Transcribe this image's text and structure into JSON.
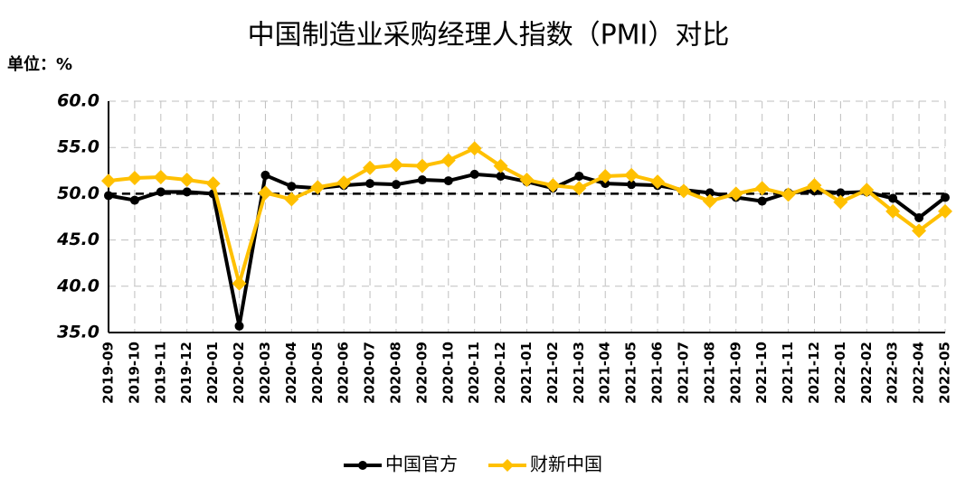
{
  "chart_data": {
    "type": "line",
    "title": "中国制造业采购经理人指数（PMI）对比",
    "unit_label": "单位：%",
    "categories": [
      "2019-09",
      "2019-10",
      "2019-11",
      "2019-12",
      "2020-01",
      "2020-02",
      "2020-03",
      "2020-04",
      "2020-05",
      "2020-06",
      "2020-07",
      "2020-08",
      "2020-09",
      "2020-10",
      "2020-11",
      "2020-12",
      "2021-01",
      "2021-02",
      "2021-03",
      "2021-04",
      "2021-05",
      "2021-06",
      "2021-07",
      "2021-08",
      "2021-09",
      "2021-10",
      "2021-11",
      "2021-12",
      "2022-01",
      "2022-02",
      "2022-03",
      "2022-04",
      "2022-05"
    ],
    "series": [
      {
        "name": "中国官方",
        "color": "#000000",
        "marker": "circle",
        "values": [
          49.8,
          49.3,
          50.2,
          50.2,
          50.0,
          35.7,
          52.0,
          50.8,
          50.6,
          50.9,
          51.1,
          51.0,
          51.5,
          51.4,
          52.1,
          51.9,
          51.3,
          50.6,
          51.9,
          51.1,
          51.0,
          50.9,
          50.4,
          50.1,
          49.6,
          49.2,
          50.1,
          50.3,
          50.1,
          50.2,
          49.5,
          47.4,
          49.6
        ]
      },
      {
        "name": "财新中国",
        "color": "#FFC000",
        "marker": "diamond",
        "values": [
          51.4,
          51.7,
          51.8,
          51.5,
          51.1,
          40.3,
          50.1,
          49.4,
          50.7,
          51.2,
          52.8,
          53.1,
          53.0,
          53.6,
          54.9,
          53.0,
          51.5,
          50.9,
          50.6,
          51.9,
          52.0,
          51.3,
          50.3,
          49.2,
          50.0,
          50.6,
          49.9,
          50.9,
          49.1,
          50.4,
          48.1,
          46.0,
          48.1
        ]
      }
    ],
    "ylim": [
      35,
      60
    ],
    "yticks": [
      {
        "value": 35,
        "label": "35.0"
      },
      {
        "value": 40,
        "label": "40.0"
      },
      {
        "value": 45,
        "label": "45.0"
      },
      {
        "value": 50,
        "label": "50.0"
      },
      {
        "value": 55,
        "label": "55.0"
      },
      {
        "value": 60,
        "label": "60.0"
      }
    ],
    "reference_line": 50,
    "grid": true,
    "legend": "bottom"
  }
}
